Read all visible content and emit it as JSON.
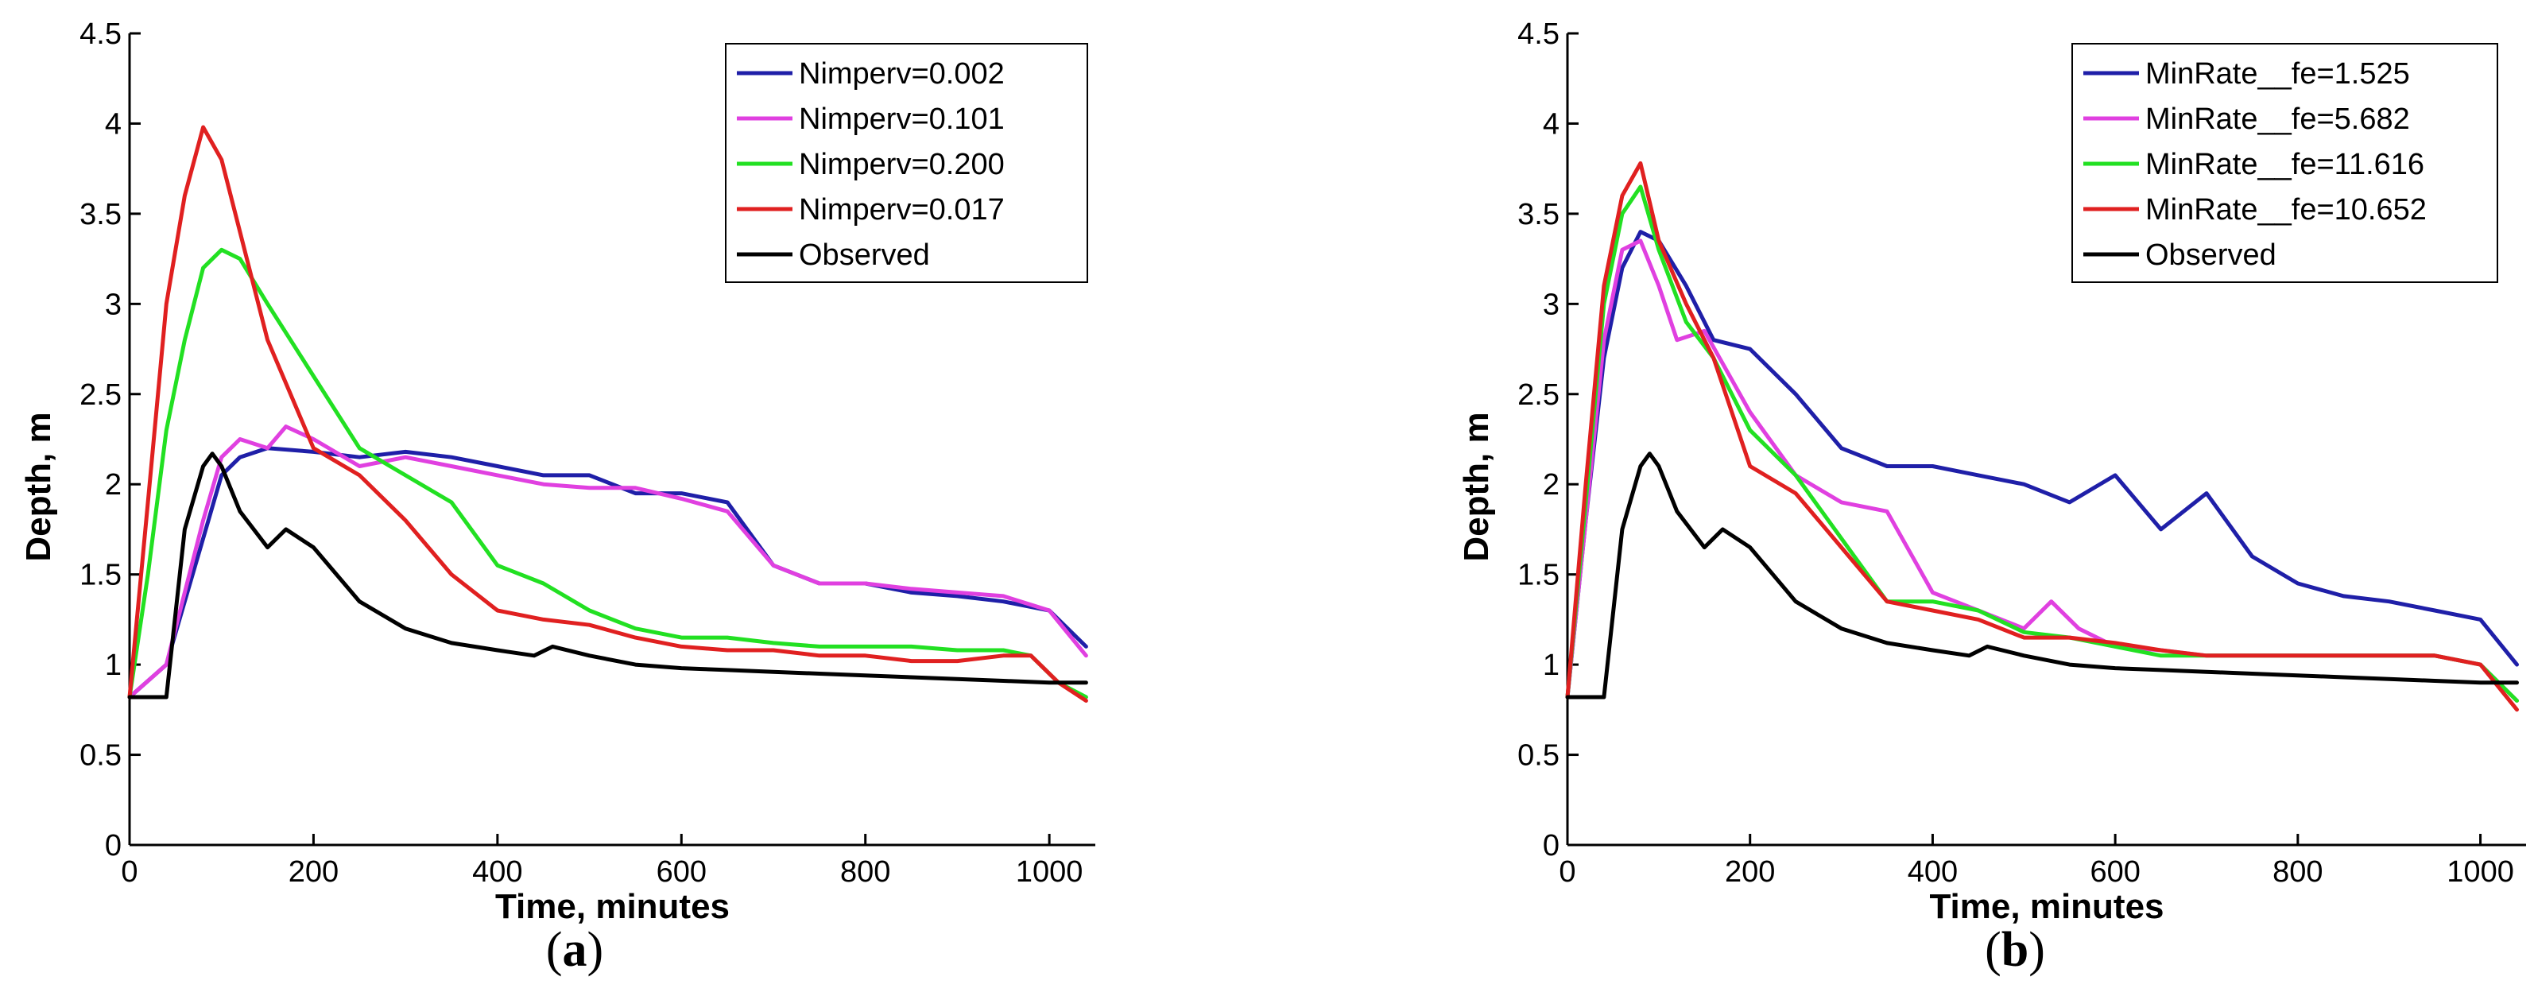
{
  "chart_data": [
    {
      "type": "line",
      "panel_label": "a",
      "title": "",
      "xlabel": "Time, minutes",
      "ylabel": "Depth, m",
      "xlim": [
        0,
        1050
      ],
      "ylim": [
        0,
        4.5
      ],
      "x_ticks": [
        "0",
        "200",
        "400",
        "600",
        "800",
        "1000"
      ],
      "y_ticks": [
        "0",
        "0.5",
        "1",
        "1.5",
        "2",
        "2.5",
        "3",
        "3.5",
        "4",
        "4.5"
      ],
      "legend_position": "top-right",
      "series": [
        {
          "name": "Nimperv=0.002",
          "color": "#1f1fa8",
          "x": [
            0,
            40,
            60,
            80,
            100,
            120,
            150,
            200,
            250,
            300,
            350,
            400,
            450,
            500,
            550,
            600,
            650,
            700,
            750,
            800,
            850,
            900,
            950,
            1000,
            1040
          ],
          "y": [
            0.82,
            1.0,
            1.35,
            1.7,
            2.05,
            2.15,
            2.2,
            2.18,
            2.15,
            2.18,
            2.15,
            2.1,
            2.05,
            2.05,
            1.95,
            1.95,
            1.9,
            1.55,
            1.45,
            1.45,
            1.4,
            1.38,
            1.35,
            1.3,
            1.1
          ]
        },
        {
          "name": "Nimperv=0.101",
          "color": "#e040e0",
          "x": [
            0,
            40,
            60,
            80,
            100,
            120,
            150,
            170,
            200,
            250,
            300,
            350,
            400,
            450,
            500,
            550,
            600,
            650,
            700,
            750,
            800,
            850,
            900,
            950,
            1000,
            1040
          ],
          "y": [
            0.82,
            1.0,
            1.4,
            1.8,
            2.15,
            2.25,
            2.2,
            2.32,
            2.25,
            2.1,
            2.15,
            2.1,
            2.05,
            2.0,
            1.98,
            1.98,
            1.92,
            1.85,
            1.55,
            1.45,
            1.45,
            1.42,
            1.4,
            1.38,
            1.3,
            1.05
          ]
        },
        {
          "name": "Nimperv=0.200",
          "color": "#22e022",
          "x": [
            0,
            20,
            40,
            60,
            80,
            100,
            120,
            150,
            200,
            250,
            300,
            350,
            400,
            450,
            500,
            550,
            600,
            650,
            700,
            750,
            800,
            850,
            900,
            950,
            980,
            1010,
            1040
          ],
          "y": [
            0.82,
            1.5,
            2.3,
            2.8,
            3.2,
            3.3,
            3.25,
            3.0,
            2.6,
            2.2,
            2.05,
            1.9,
            1.55,
            1.45,
            1.3,
            1.2,
            1.15,
            1.15,
            1.12,
            1.1,
            1.1,
            1.1,
            1.08,
            1.08,
            1.05,
            0.9,
            0.82
          ]
        },
        {
          "name": "Nimperv=0.017",
          "color": "#e02020",
          "x": [
            0,
            20,
            40,
            60,
            80,
            100,
            120,
            150,
            200,
            250,
            300,
            350,
            400,
            450,
            500,
            550,
            600,
            650,
            700,
            750,
            800,
            850,
            900,
            950,
            980,
            1010,
            1040
          ],
          "y": [
            0.82,
            1.9,
            3.0,
            3.6,
            3.98,
            3.8,
            3.4,
            2.8,
            2.2,
            2.05,
            1.8,
            1.5,
            1.3,
            1.25,
            1.22,
            1.15,
            1.1,
            1.08,
            1.08,
            1.05,
            1.05,
            1.02,
            1.02,
            1.05,
            1.05,
            0.9,
            0.8
          ]
        },
        {
          "name": "Observed",
          "color": "#000000",
          "x": [
            0,
            40,
            60,
            80,
            90,
            100,
            120,
            150,
            170,
            200,
            250,
            300,
            350,
            400,
            440,
            460,
            500,
            550,
            600,
            650,
            700,
            750,
            800,
            850,
            900,
            950,
            1000,
            1040
          ],
          "y": [
            0.82,
            0.82,
            1.75,
            2.1,
            2.17,
            2.1,
            1.85,
            1.65,
            1.75,
            1.65,
            1.35,
            1.2,
            1.12,
            1.08,
            1.05,
            1.1,
            1.05,
            1.0,
            0.98,
            0.97,
            0.96,
            0.95,
            0.94,
            0.93,
            0.92,
            0.91,
            0.9,
            0.9
          ]
        }
      ]
    },
    {
      "type": "line",
      "panel_label": "b",
      "title": "",
      "xlabel": "Time, minutes",
      "ylabel": "Depth, m",
      "xlim": [
        0,
        1050
      ],
      "ylim": [
        0,
        4.5
      ],
      "x_ticks": [
        "0",
        "200",
        "400",
        "600",
        "800",
        "1000"
      ],
      "y_ticks": [
        "0",
        "0.5",
        "1",
        "1.5",
        "2",
        "2.5",
        "3",
        "3.5",
        "4",
        "4.5"
      ],
      "legend_position": "top-right",
      "series": [
        {
          "name": "MinRate__fe=1.525",
          "color": "#1f1fa8",
          "x": [
            0,
            20,
            40,
            60,
            80,
            100,
            130,
            160,
            200,
            250,
            300,
            350,
            400,
            450,
            500,
            550,
            600,
            650,
            700,
            750,
            800,
            850,
            900,
            950,
            1000,
            1040
          ],
          "y": [
            0.82,
            1.8,
            2.7,
            3.2,
            3.4,
            3.35,
            3.1,
            2.8,
            2.75,
            2.5,
            2.2,
            2.1,
            2.1,
            2.05,
            2.0,
            1.9,
            2.05,
            1.75,
            1.95,
            1.6,
            1.45,
            1.38,
            1.35,
            1.3,
            1.25,
            1.0
          ]
        },
        {
          "name": "MinRate__fe=5.682",
          "color": "#e040e0",
          "x": [
            0,
            20,
            40,
            60,
            80,
            100,
            120,
            150,
            200,
            250,
            300,
            350,
            400,
            450,
            500,
            530,
            560,
            600,
            650,
            700,
            750,
            800,
            850,
            900,
            950,
            1000,
            1040
          ],
          "y": [
            0.82,
            1.8,
            2.8,
            3.3,
            3.35,
            3.1,
            2.8,
            2.85,
            2.4,
            2.05,
            1.9,
            1.85,
            1.4,
            1.3,
            1.2,
            1.35,
            1.2,
            1.1,
            1.08,
            1.05,
            1.05,
            1.05,
            1.05,
            1.05,
            1.05,
            1.0,
            0.8
          ]
        },
        {
          "name": "MinRate__fe=11.616",
          "color": "#22e022",
          "x": [
            0,
            20,
            40,
            60,
            80,
            100,
            130,
            160,
            200,
            250,
            300,
            350,
            400,
            450,
            500,
            550,
            600,
            650,
            700,
            750,
            800,
            850,
            900,
            950,
            1000,
            1040
          ],
          "y": [
            0.82,
            1.9,
            3.0,
            3.5,
            3.65,
            3.3,
            2.9,
            2.7,
            2.3,
            2.05,
            1.7,
            1.35,
            1.35,
            1.3,
            1.18,
            1.15,
            1.1,
            1.05,
            1.05,
            1.05,
            1.05,
            1.05,
            1.05,
            1.05,
            1.0,
            0.8
          ]
        },
        {
          "name": "MinRate__fe=10.652",
          "color": "#e02020",
          "x": [
            0,
            20,
            40,
            60,
            80,
            100,
            130,
            160,
            200,
            250,
            300,
            350,
            400,
            450,
            500,
            550,
            600,
            650,
            700,
            750,
            800,
            850,
            900,
            950,
            1000,
            1040
          ],
          "y": [
            0.82,
            2.0,
            3.1,
            3.6,
            3.78,
            3.35,
            3.0,
            2.7,
            2.1,
            1.95,
            1.65,
            1.35,
            1.3,
            1.25,
            1.15,
            1.15,
            1.12,
            1.08,
            1.05,
            1.05,
            1.05,
            1.05,
            1.05,
            1.05,
            1.0,
            0.75
          ]
        },
        {
          "name": "Observed",
          "color": "#000000",
          "x": [
            0,
            40,
            60,
            80,
            90,
            100,
            120,
            150,
            170,
            200,
            250,
            300,
            350,
            400,
            440,
            460,
            500,
            550,
            600,
            650,
            700,
            750,
            800,
            850,
            900,
            950,
            1000,
            1040
          ],
          "y": [
            0.82,
            0.82,
            1.75,
            2.1,
            2.17,
            2.1,
            1.85,
            1.65,
            1.75,
            1.65,
            1.35,
            1.2,
            1.12,
            1.08,
            1.05,
            1.1,
            1.05,
            1.0,
            0.98,
            0.97,
            0.96,
            0.95,
            0.94,
            0.93,
            0.92,
            0.91,
            0.9,
            0.9
          ]
        }
      ]
    }
  ]
}
